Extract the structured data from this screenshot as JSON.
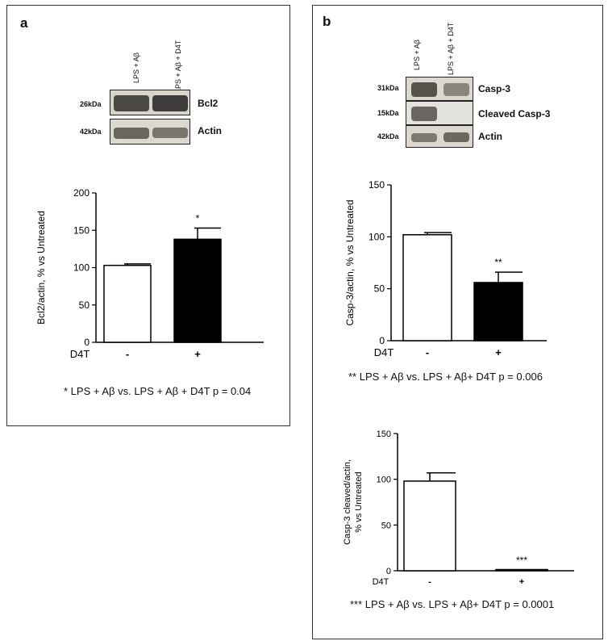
{
  "panel_a": {
    "letter": "a",
    "lane_headers": [
      "LPS + Aβ",
      "LPS + Aβ + D4T"
    ],
    "blots": [
      {
        "kda": "26kDa",
        "name": "Bcl2"
      },
      {
        "kda": "42kDa",
        "name": "Actin"
      }
    ],
    "stat_note": "* LPS + Aβ vs. LPS + Aβ + D4T p = 0.04"
  },
  "panel_b": {
    "letter": "b",
    "lane_headers": [
      "LPS + Aβ",
      "LPS + Aβ + D4T"
    ],
    "blots": [
      {
        "kda": "31kDa",
        "name": "Casp-3"
      },
      {
        "kda": "15kDa",
        "name": "Cleaved Casp-3"
      },
      {
        "kda": "42kDa",
        "name": "Actin"
      }
    ],
    "stat_note_1": "** LPS + Aβ vs. LPS + Aβ+ D4T p = 0.006",
    "stat_note_2": "*** LPS + Aβ vs. LPS + Aβ+ D4T p = 0.0001"
  },
  "chart_data": [
    {
      "type": "bar",
      "ylabel": "Bcl2/actin, % vs Untreated",
      "treatment_label": "D4T",
      "categories": [
        "-",
        "+"
      ],
      "values": [
        103,
        138
      ],
      "errors": [
        2,
        15
      ],
      "fills": [
        "#ffffff",
        "#000000"
      ],
      "significance": [
        "",
        "*"
      ],
      "ylim": [
        0,
        200
      ],
      "yticks": [
        0,
        50,
        100,
        150,
        200
      ]
    },
    {
      "type": "bar",
      "ylabel": "Casp-3/actin, % vs Untreated",
      "treatment_label": "D4T",
      "categories": [
        "-",
        "+"
      ],
      "values": [
        102,
        56
      ],
      "errors": [
        2,
        10
      ],
      "fills": [
        "#ffffff",
        "#000000"
      ],
      "significance": [
        "",
        "**"
      ],
      "ylim": [
        0,
        150
      ],
      "yticks": [
        0,
        50,
        100,
        150
      ]
    },
    {
      "type": "bar",
      "ylabel": "Casp-3 cleaved/actin, % vs Untreated",
      "ylabel_lines": [
        "Casp-3 cleaved/actin,",
        "% vs Untreated"
      ],
      "treatment_label": "D4T",
      "categories": [
        "-",
        "+"
      ],
      "values": [
        98,
        1
      ],
      "errors": [
        9,
        0
      ],
      "fills": [
        "#ffffff",
        "#000000"
      ],
      "significance": [
        "",
        "***"
      ],
      "ylim": [
        0,
        150
      ],
      "yticks": [
        0,
        50,
        100,
        150
      ]
    }
  ]
}
